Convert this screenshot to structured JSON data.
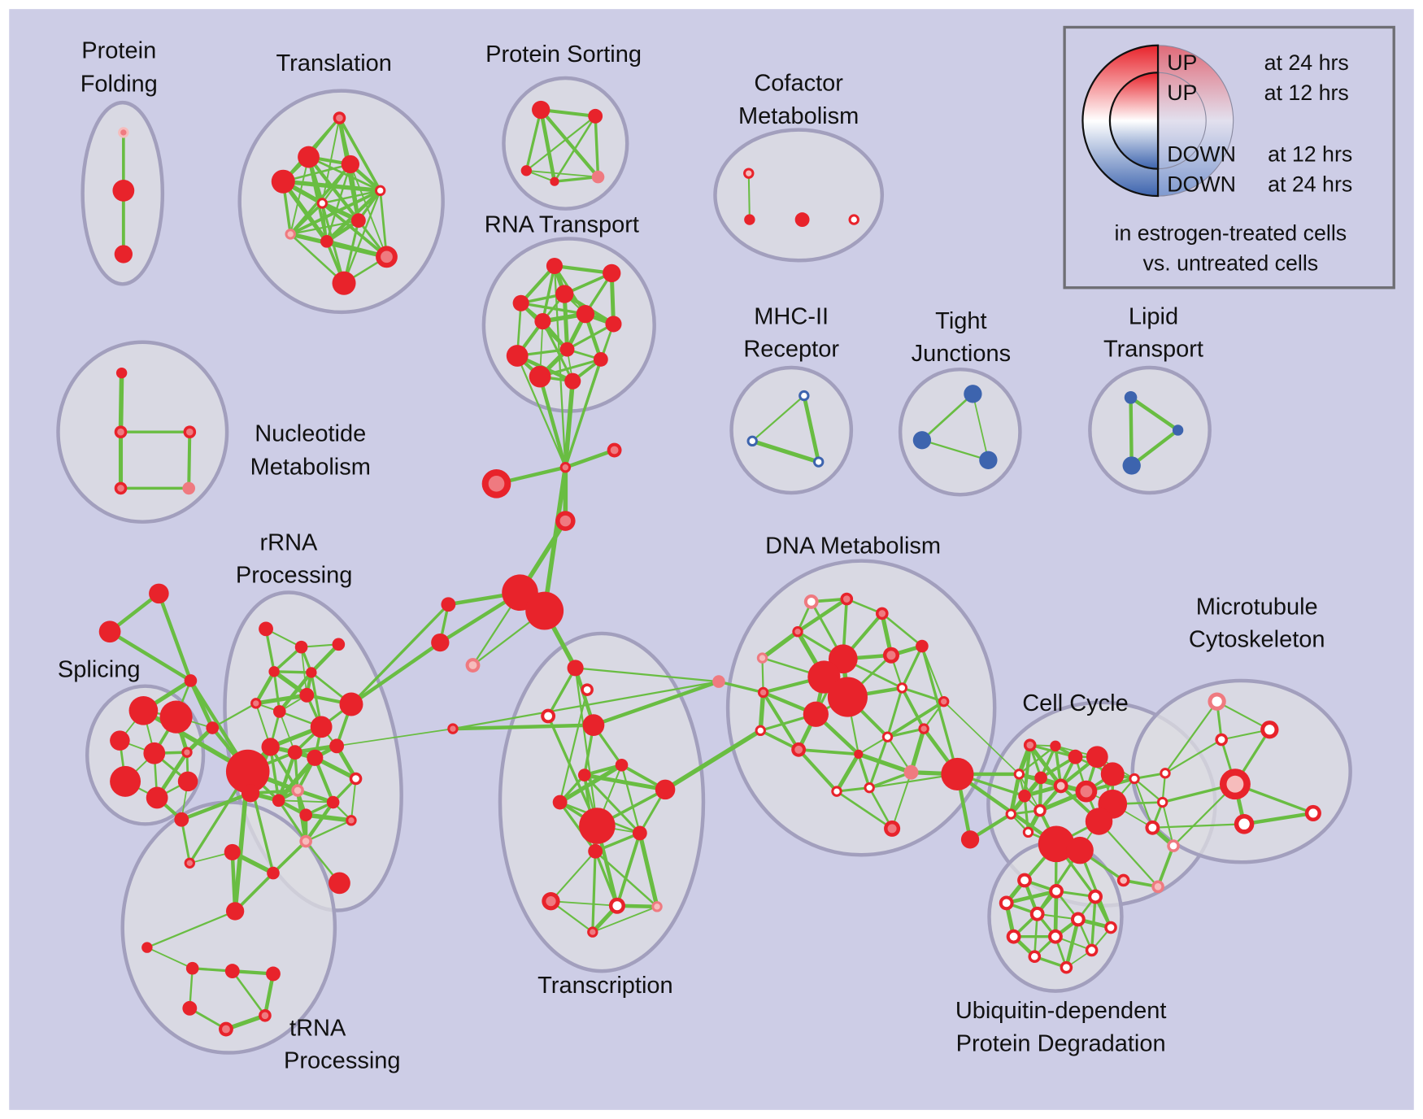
{
  "colors": {
    "background": "#cdcde6",
    "edge": "#69bd42",
    "up_strong": "#e8232b",
    "up_mid": "#ef7a80",
    "up_light": "#f6bcbc",
    "neutral": "#ffffff",
    "down": "#3d64ae",
    "cluster_fill": "#dcdce2",
    "cluster_stroke": "#a29fbd"
  },
  "clusters": {
    "protein_folding": [
      "Protein",
      "Folding"
    ],
    "translation": [
      "Translation"
    ],
    "protein_sorting": [
      "Protein Sorting"
    ],
    "cofactor_metabolism": [
      "Cofactor",
      "Metabolism"
    ],
    "rna_transport": [
      "RNA Transport"
    ],
    "nucleotide_metabolism": [
      "Nucleotide",
      "Metabolism"
    ],
    "mhc_ii_receptor": [
      "MHC-II",
      "Receptor"
    ],
    "tight_junctions": [
      "Tight",
      "Junctions"
    ],
    "lipid_transport": [
      "Lipid",
      "Transport"
    ],
    "rrna_processing": [
      "rRNA",
      "Processing"
    ],
    "splicing": [
      "Splicing"
    ],
    "dna_metabolism": [
      "DNA Metabolism"
    ],
    "microtubule_cytoskeleton": [
      "Microtubule",
      "Cytoskeleton"
    ],
    "cell_cycle": [
      "Cell Cycle"
    ],
    "transcription": [
      "Transcription"
    ],
    "trna_processing": [
      "tRNA",
      "Processing"
    ],
    "ubiquitin_degradation": [
      "Ubiquitin-dependent",
      "Protein Degradation"
    ]
  },
  "legend": {
    "up24_state": "UP",
    "up24_time": "at 24 hrs",
    "up12_state": "UP",
    "up12_time": "at 12 hrs",
    "down12_state": "DOWN",
    "down12_time": "at 12 hrs",
    "down24_state": "DOWN",
    "down24_time": "at 24 hrs",
    "caption_line1": "in estrogen-treated cells",
    "caption_line2": "vs. untreated cells"
  }
}
